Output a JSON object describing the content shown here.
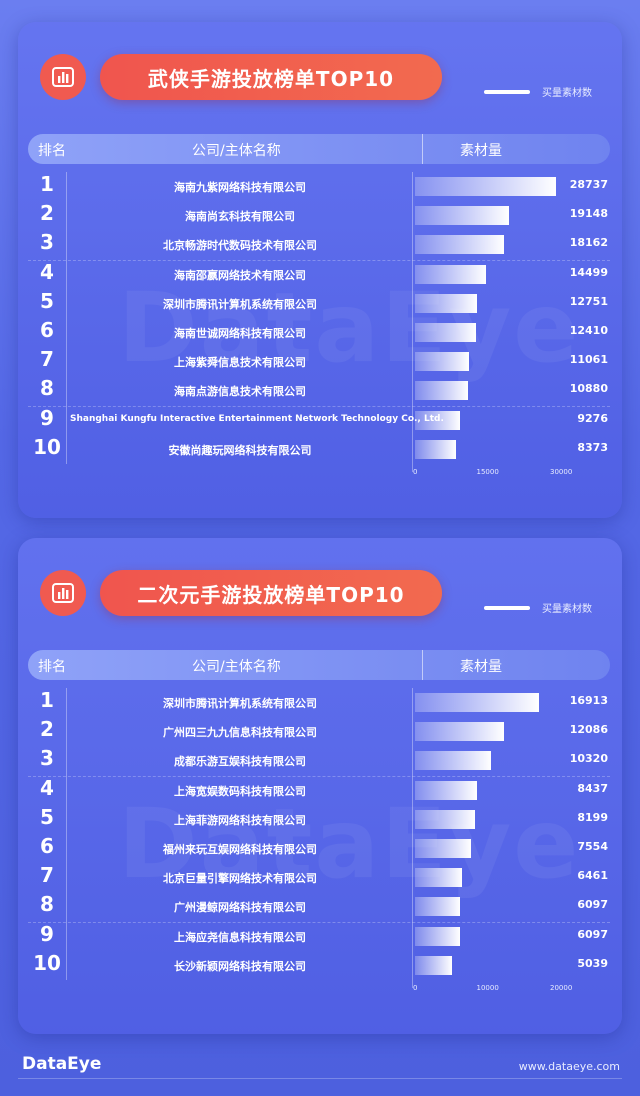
{
  "legend_label": "买量素材数",
  "columns": {
    "rank": "排名",
    "company": "公司/主体名称",
    "materials": "素材量"
  },
  "watermark": "DataEye",
  "footer": {
    "logo": "DataEye",
    "url": "www.dataeye.com"
  },
  "chart_data": [
    {
      "type": "bar",
      "title": "武侠手游投放榜单TOP10",
      "series": [
        {
          "name": "买量素材数",
          "values": [
            28737,
            19148,
            18162,
            14499,
            12751,
            12410,
            11061,
            10880,
            9276,
            8373
          ]
        }
      ],
      "categories": [
        "海南九紫网络科技有限公司",
        "海南尚玄科技有限公司",
        "北京畅游时代数码技术有限公司",
        "海南邵嬴网络技术有限公司",
        "深圳市腾讯计算机系统有限公司",
        "海南世诚网络科技有限公司",
        "上海紫舜信息技术有限公司",
        "海南点游信息技术有限公司",
        "Shanghai Kungfu Interactive Entertainment Network Technology Co., Ltd.",
        "安徽尚趣玩网络科技有限公司"
      ],
      "ranks": [
        "1",
        "2",
        "3",
        "4",
        "5",
        "6",
        "7",
        "8",
        "9",
        "10"
      ],
      "xlim": [
        0,
        30000
      ],
      "ticks": [
        "0",
        "15000",
        "30000"
      ]
    },
    {
      "type": "bar",
      "title": "二次元手游投放榜单TOP10",
      "series": [
        {
          "name": "买量素材数",
          "values": [
            16913,
            12086,
            10320,
            8437,
            8199,
            7554,
            6461,
            6097,
            6097,
            5039
          ]
        }
      ],
      "categories": [
        "深圳市腾讯计算机系统有限公司",
        "广州四三九九信息科技有限公司",
        "成都乐游互娱科技有限公司",
        "上海宽娱数码科技有限公司",
        "上海菲游网络科技有限公司",
        "福州来玩互娱网络科技有限公司",
        "北京巨量引擎网络技术有限公司",
        "广州漫鲸网络科技有限公司",
        "上海应尧信息科技有限公司",
        "长沙新颖网络科技有限公司"
      ],
      "ranks": [
        "1",
        "2",
        "3",
        "4",
        "5",
        "6",
        "7",
        "8",
        "9",
        "10"
      ],
      "xlim": [
        0,
        20000
      ],
      "ticks": [
        "0",
        "10000",
        "20000"
      ]
    }
  ]
}
